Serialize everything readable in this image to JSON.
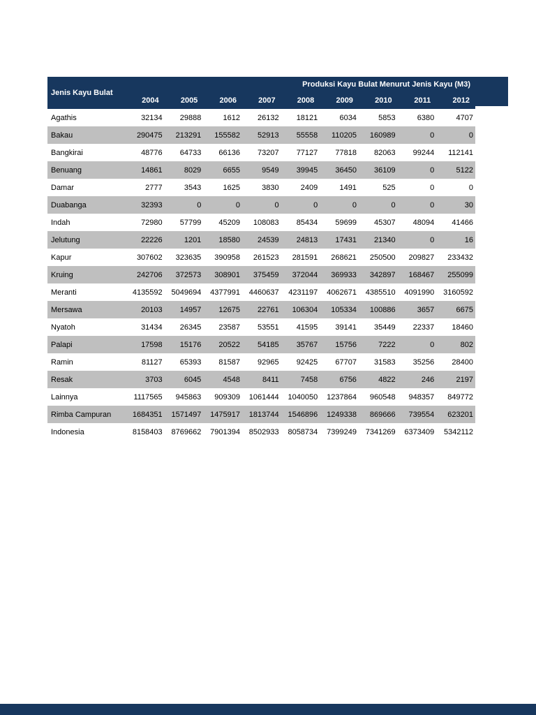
{
  "colors": {
    "header_bg": "#17375E",
    "alt_row_bg": "#BFBFBF",
    "row_bg": "#FFFFFF",
    "footer_bar_bg": "#17375E",
    "header_text": "#FFFFFF",
    "body_text": "#000000"
  },
  "table": {
    "title": "Produksi Kayu Bulat Menurut Jenis Kayu (M3)",
    "row_header_label": "Jenis Kayu Bulat",
    "years": [
      "2004",
      "2005",
      "2006",
      "2007",
      "2008",
      "2009",
      "2010",
      "2011",
      "2012"
    ],
    "rows": [
      {
        "label": "Agathis",
        "values": [
          32134,
          29888,
          1612,
          26132,
          18121,
          6034,
          5853,
          6380,
          4707
        ]
      },
      {
        "label": "Bakau",
        "values": [
          290475,
          213291,
          155582,
          52913,
          55558,
          110205,
          160989,
          0,
          0
        ]
      },
      {
        "label": "Bangkirai",
        "values": [
          48776,
          64733,
          66136,
          73207,
          77127,
          77818,
          82063,
          99244,
          112141
        ]
      },
      {
        "label": "Benuang",
        "values": [
          14861,
          8029,
          6655,
          9549,
          39945,
          36450,
          36109,
          0,
          5122
        ]
      },
      {
        "label": "Damar",
        "values": [
          2777,
          3543,
          1625,
          3830,
          2409,
          1491,
          525,
          0,
          0
        ]
      },
      {
        "label": "Duabanga",
        "values": [
          32393,
          0,
          0,
          0,
          0,
          0,
          0,
          0,
          30
        ]
      },
      {
        "label": "Indah",
        "values": [
          72980,
          57799,
          45209,
          108083,
          85434,
          59699,
          45307,
          48094,
          41466
        ]
      },
      {
        "label": "Jelutung",
        "values": [
          22226,
          1201,
          18580,
          24539,
          24813,
          17431,
          21340,
          0,
          16
        ]
      },
      {
        "label": "Kapur",
        "values": [
          307602,
          323635,
          390958,
          261523,
          281591,
          268621,
          250500,
          209827,
          233432
        ]
      },
      {
        "label": "Kruing",
        "values": [
          242706,
          372573,
          308901,
          375459,
          372044,
          369933,
          342897,
          168467,
          255099
        ]
      },
      {
        "label": "Meranti",
        "values": [
          4135592,
          5049694,
          4377991,
          4460637,
          4231197,
          4062671,
          4385510,
          4091990,
          3160592
        ]
      },
      {
        "label": "Mersawa",
        "values": [
          20103,
          14957,
          12675,
          22761,
          106304,
          105334,
          100886,
          3657,
          6675
        ]
      },
      {
        "label": "Nyatoh",
        "values": [
          31434,
          26345,
          23587,
          53551,
          41595,
          39141,
          35449,
          22337,
          18460
        ]
      },
      {
        "label": "Palapi",
        "values": [
          17598,
          15176,
          20522,
          54185,
          35767,
          15756,
          7222,
          0,
          802
        ]
      },
      {
        "label": "Ramin",
        "values": [
          81127,
          65393,
          81587,
          92965,
          92425,
          67707,
          31583,
          35256,
          28400
        ]
      },
      {
        "label": "Resak",
        "values": [
          3703,
          6045,
          4548,
          8411,
          7458,
          6756,
          4822,
          246,
          2197
        ]
      },
      {
        "label": "Lainnya",
        "values": [
          1117565,
          945863,
          909309,
          1061444,
          1040050,
          1237864,
          960548,
          948357,
          849772
        ]
      },
      {
        "label": "Rimba Campuran",
        "values": [
          1684351,
          1571497,
          1475917,
          1813744,
          1546896,
          1249338,
          869666,
          739554,
          623201
        ]
      },
      {
        "label": "Indonesia",
        "values": [
          8158403,
          8769662,
          7901394,
          8502933,
          8058734,
          7399249,
          7341269,
          6373409,
          5342112
        ]
      }
    ]
  }
}
